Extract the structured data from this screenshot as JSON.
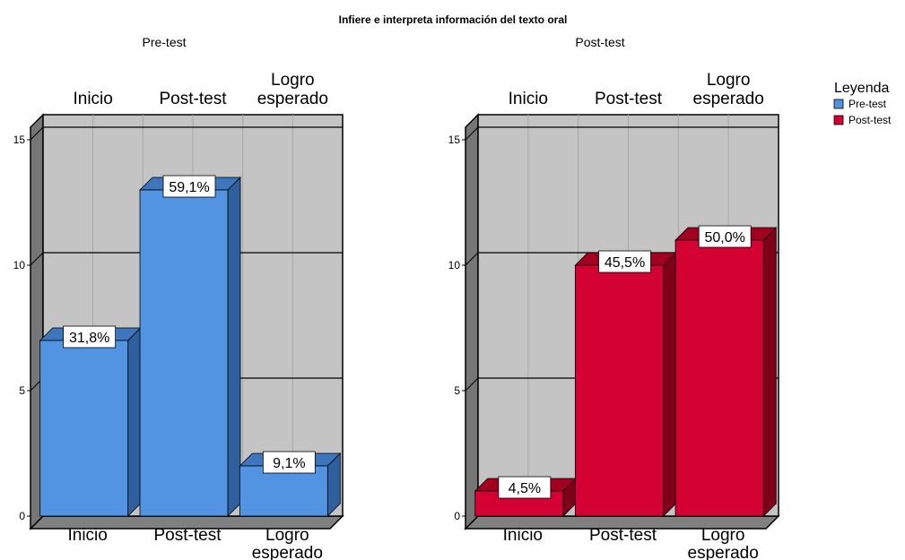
{
  "chart_data": {
    "type": "bar",
    "title": "Infiere e interpreta información del texto oral",
    "legend": {
      "title": "Leyenda",
      "placement": "right",
      "entries": [
        {
          "label": "Pre-test",
          "color": "#5294e2"
        },
        {
          "label": "Post-test",
          "color": "#d30232"
        }
      ]
    },
    "ylim": [
      0,
      16
    ],
    "yticks": [
      0,
      5,
      10,
      15
    ],
    "grid": true,
    "panels": [
      {
        "title": "Pre-test",
        "categories": [
          "Inicio",
          "Post-test",
          "Logro esperado"
        ],
        "values": [
          7,
          13,
          2
        ],
        "labels": [
          "31,8%",
          "59,1%",
          "9,1%"
        ],
        "color": "#5294e2",
        "side_color": "#2f5f9c",
        "top_color": "#3e76bd"
      },
      {
        "title": "Post-test",
        "categories": [
          "Inicio",
          "Post-test",
          "Logro esperado"
        ],
        "values": [
          1,
          10,
          11
        ],
        "labels": [
          "4,5%",
          "45,5%",
          "50,0%"
        ],
        "color": "#d30232",
        "side_color": "#7e0019",
        "top_color": "#a3001f"
      }
    ]
  }
}
